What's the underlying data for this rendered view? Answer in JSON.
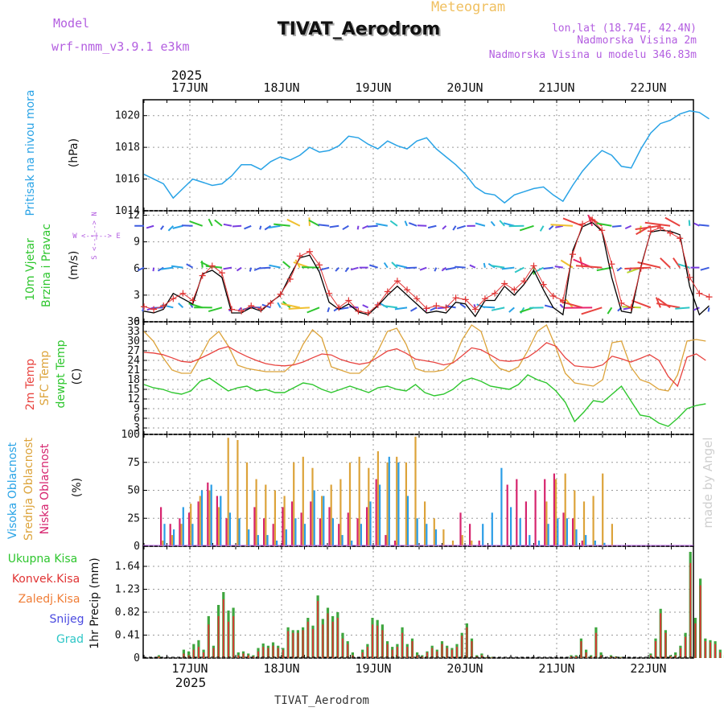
{
  "header": {
    "meteogram_label": "Meteogram",
    "station": "TIVAT_Aerodrom",
    "model_label": "Model",
    "model_name": "wrf-nmm_v3.9.1  e3km",
    "lonlat": "lon,lat (18.74E, 42.4N)",
    "alt_station": "Nadmorska Visina 2m",
    "alt_model": "Nadmorska Visina u modelu 346.83m",
    "year": "2025",
    "footer_station": "TIVAT_Aerodrom",
    "credit": "made by Angel"
  },
  "colors": {
    "pressure": "#29a3e6",
    "temp2m": "#e8433f",
    "sfc": "#dca33a",
    "dewpt": "#2ec62e",
    "high_cloud": "#2a9de6",
    "mid_cloud": "#dca33a",
    "low_cloud": "#d6246e",
    "total_precip": "#3fa63f",
    "conv_precip": "#e03333",
    "frozen_precip": "#f07d36",
    "snow": "#4a4ae0",
    "hail": "#2ec6c6",
    "wind_dir_label": "#b35ee0"
  },
  "chart_data": [
    {
      "type": "line",
      "id": "pressure",
      "title": "Pritisak na nivou mora",
      "ylabel": "(hPa)",
      "ylim": [
        1014,
        1021
      ],
      "yticks": [
        "1014",
        "1016",
        "1018",
        "1020"
      ],
      "x_start": "2025-06-16T12",
      "step_hours": 3,
      "days": [
        "17JUN",
        "18JUN",
        "19JUN",
        "20JUN",
        "21JUN",
        "22JUN"
      ],
      "series": [
        {
          "name": "Pritisak na nivou mora",
          "values": [
            1016.3,
            1016.0,
            1015.7,
            1014.8,
            1015.4,
            1016.0,
            1015.8,
            1015.6,
            1015.7,
            1016.2,
            1016.9,
            1016.9,
            1016.6,
            1017.1,
            1017.4,
            1017.2,
            1017.5,
            1018.0,
            1017.7,
            1017.8,
            1018.1,
            1018.7,
            1018.6,
            1018.2,
            1017.9,
            1018.4,
            1018.1,
            1017.9,
            1018.4,
            1018.6,
            1017.9,
            1017.4,
            1016.9,
            1016.3,
            1015.5,
            1015.1,
            1015.0,
            1014.5,
            1015.0,
            1015.2,
            1015.4,
            1015.5,
            1015.0,
            1014.6,
            1015.6,
            1016.5,
            1017.2,
            1017.8,
            1017.5,
            1016.8,
            1016.7,
            1017.9,
            1018.9,
            1019.5,
            1019.7,
            1020.1,
            1020.3,
            1020.2,
            1019.8
          ]
        }
      ]
    },
    {
      "type": "line",
      "id": "wind",
      "title": "10m Vjetar",
      "subtitle": "Brzina i Pravac",
      "ylabel": "(m/s)",
      "dir_label": "W <--|--> E",
      "dir_label2": "S <--|--> N",
      "ylim": [
        0,
        12.5
      ],
      "yticks": [
        "0",
        "3",
        "6",
        "9",
        "12"
      ],
      "series": [
        {
          "name": "brzina (plus)",
          "values": [
            1.7,
            1.4,
            1.8,
            2.6,
            3.2,
            2.4,
            5.2,
            6.3,
            5.5,
            1.4,
            1.2,
            1.8,
            1.4,
            2.1,
            3.1,
            4.8,
            7.4,
            7.9,
            6.4,
            3.2,
            1.6,
            2.4,
            1.2,
            1.0,
            1.9,
            3.4,
            4.6,
            3.6,
            2.6,
            1.5,
            1.8,
            1.6,
            2.7,
            2.5,
            1.4,
            2.6,
            3.2,
            4.3,
            3.6,
            4.6,
            6.3,
            4.2,
            2.9,
            2.4,
            7.6,
            11.0,
            11.5,
            10.3,
            6.5,
            2.1,
            1.6,
            6.0,
            10.2,
            10.6,
            10.0,
            9.4,
            5.0,
            3.2,
            2.8
          ]
        },
        {
          "name": "brzina (linija)",
          "values": [
            1.2,
            1.0,
            1.4,
            3.2,
            2.6,
            2.0,
            5.4,
            5.8,
            5.0,
            1.0,
            1.0,
            1.6,
            1.2,
            2.2,
            3.0,
            5.2,
            7.2,
            7.5,
            5.6,
            2.2,
            1.4,
            2.0,
            1.1,
            0.8,
            1.8,
            3.0,
            4.0,
            3.0,
            2.0,
            1.0,
            1.2,
            1.0,
            2.2,
            2.0,
            0.6,
            2.4,
            2.4,
            4.0,
            3.0,
            4.2,
            5.8,
            3.6,
            1.6,
            0.8,
            8.0,
            10.7,
            11.2,
            10.2,
            5.0,
            1.2,
            1.0,
            6.2,
            10.1,
            10.3,
            10.2,
            9.8,
            4.0,
            0.8,
            1.8
          ]
        }
      ]
    },
    {
      "type": "line",
      "id": "temperature",
      "title": "2m Temp",
      "subtitle": "SFC Temp",
      "subtitle2": "dewpt Temp",
      "ylabel": "(C)",
      "ylim": [
        1,
        36
      ],
      "yticks": [
        "3",
        "6",
        "9",
        "12",
        "15",
        "18",
        "21",
        "24",
        "27",
        "30",
        "33",
        "36"
      ],
      "series": [
        {
          "name": "2m Temp",
          "values": [
            26.5,
            26.3,
            25.8,
            24.8,
            23.7,
            23.4,
            24.6,
            26.0,
            27.5,
            28.3,
            26.6,
            25.2,
            24.0,
            23.0,
            22.5,
            22.3,
            22.6,
            23.5,
            24.8,
            26.0,
            25.7,
            24.3,
            23.4,
            22.8,
            23.3,
            25.0,
            26.9,
            27.6,
            26.2,
            24.4,
            23.9,
            23.4,
            22.6,
            23.2,
            25.5,
            27.9,
            27.3,
            25.7,
            24.0,
            23.7,
            24.0,
            25.0,
            27.0,
            29.5,
            28.4,
            24.8,
            22.3,
            22.0,
            21.8,
            22.6,
            25.3,
            24.5,
            23.5,
            24.6,
            25.8,
            24.0,
            19.0,
            16.0,
            25.0,
            26.0,
            24.0
          ]
        },
        {
          "name": "SFC Temp",
          "values": [
            33.0,
            30.0,
            25.0,
            21.0,
            20.0,
            20.0,
            25.0,
            30.5,
            33.0,
            28.5,
            22.5,
            21.5,
            21.0,
            20.5,
            20.5,
            20.5,
            23.0,
            29.0,
            33.5,
            31.0,
            22.0,
            21.0,
            20.0,
            20.0,
            22.5,
            27.0,
            33.0,
            34.0,
            29.0,
            21.5,
            20.5,
            20.5,
            21.0,
            23.5,
            30.5,
            35.0,
            33.0,
            24.5,
            21.5,
            20.5,
            22.0,
            27.0,
            33.0,
            35.0,
            28.0,
            20.0,
            17.0,
            16.5,
            16.0,
            18.0,
            29.5,
            30.0,
            22.0,
            18.0,
            17.0,
            15.0,
            14.5,
            19.5,
            30.0,
            30.5,
            30.0
          ]
        },
        {
          "name": "dewpt Temp",
          "values": [
            16.5,
            15.5,
            15.0,
            14.0,
            13.5,
            14.5,
            17.5,
            18.5,
            16.5,
            14.5,
            15.5,
            16.0,
            14.5,
            15.0,
            14.0,
            14.0,
            15.5,
            17.0,
            16.5,
            15.0,
            14.0,
            15.0,
            16.0,
            15.0,
            14.0,
            15.5,
            16.0,
            15.0,
            14.5,
            16.5,
            14.0,
            13.0,
            13.5,
            15.0,
            17.5,
            18.5,
            17.5,
            16.0,
            15.5,
            15.0,
            16.5,
            19.5,
            18.0,
            17.0,
            14.5,
            11.0,
            5.0,
            8.0,
            11.5,
            11.0,
            13.5,
            16.0,
            11.5,
            7.0,
            6.5,
            4.5,
            3.5,
            6.0,
            9.0,
            10.0,
            10.5
          ]
        }
      ]
    },
    {
      "type": "bar",
      "id": "clouds",
      "title": "Visoka Oblacnost",
      "subtitle": "Srednja Oblacnost",
      "subtitle2": "Niska Oblacnost",
      "ylabel": "(%)",
      "ylim": [
        0,
        100
      ],
      "yticks": [
        "0",
        "25",
        "50",
        "75",
        "100"
      ],
      "series": [
        {
          "name": "Niska Oblacnost",
          "values": [
            0,
            0,
            35,
            20,
            25,
            30,
            40,
            57,
            45,
            25,
            0,
            0,
            35,
            25,
            20,
            35,
            40,
            30,
            40,
            25,
            35,
            20,
            30,
            25,
            35,
            60,
            10,
            5,
            0,
            0,
            0,
            0,
            0,
            0,
            30,
            20,
            5,
            0,
            0,
            55,
            60,
            40,
            50,
            60,
            65,
            30,
            25,
            5,
            0,
            0,
            0,
            0,
            0,
            0,
            0,
            0,
            0,
            0,
            0,
            0,
            0
          ]
        },
        {
          "name": "Srednja Oblacnost",
          "values": [
            0,
            0,
            5,
            10,
            20,
            38,
            45,
            50,
            35,
            97,
            95,
            75,
            60,
            55,
            50,
            45,
            75,
            80,
            70,
            45,
            55,
            60,
            75,
            80,
            70,
            85,
            75,
            80,
            75,
            98,
            40,
            25,
            15,
            5,
            10,
            5,
            0,
            0,
            0,
            0,
            0,
            0,
            0,
            40,
            60,
            65,
            50,
            40,
            45,
            65,
            20,
            0,
            0,
            0,
            0,
            0,
            0,
            0,
            0,
            0,
            0
          ]
        },
        {
          "name": "Visoka Oblacnost",
          "values": [
            0,
            0,
            20,
            15,
            35,
            20,
            50,
            55,
            45,
            30,
            25,
            15,
            10,
            10,
            5,
            15,
            25,
            20,
            50,
            45,
            25,
            10,
            5,
            20,
            40,
            55,
            80,
            75,
            45,
            25,
            20,
            15,
            0,
            0,
            0,
            0,
            20,
            30,
            70,
            35,
            25,
            10,
            5,
            20,
            25,
            25,
            15,
            10,
            5,
            3,
            0,
            0,
            0,
            0,
            0,
            0,
            0,
            0,
            0,
            0,
            0
          ]
        }
      ]
    },
    {
      "type": "bar",
      "id": "precip",
      "title": "Ukupna Kisa",
      "subtitle": "Konvek.Kisa",
      "subtitle2": "Zaledj.Kisa",
      "subtitle3": "Snijeg",
      "subtitle4": "Grad",
      "ylabel": "1hr Precip (mm)",
      "ylim": [
        0,
        2.0
      ],
      "yticks": [
        "0",
        "0.41",
        "0.82",
        "1.23",
        "1.64"
      ],
      "series": [
        {
          "name": "Ukupna Kisa",
          "values": [
            0,
            0,
            0,
            0.05,
            0,
            0,
            0,
            0,
            0.15,
            0.12,
            0.25,
            0.32,
            0.15,
            0.75,
            0.22,
            0.95,
            1.18,
            0.85,
            0.9,
            0.1,
            0.12,
            0.08,
            0.05,
            0.18,
            0.26,
            0.22,
            0.28,
            0.22,
            0.18,
            0.55,
            0.5,
            0.5,
            0.55,
            0.72,
            0.58,
            1.12,
            0.7,
            0.9,
            0.75,
            0.82,
            0.45,
            0.3,
            0.1,
            0.0,
            0.15,
            0.25,
            0.72,
            0.68,
            0.6,
            0.3,
            0.2,
            0.25,
            0.55,
            0.25,
            0.35,
            0.1,
            0.05,
            0.12,
            0.22,
            0.15,
            0.3,
            0.22,
            0.18,
            0.25,
            0.45,
            0.62,
            0.35,
            0.05,
            0.08,
            0.02,
            0.02,
            0.0,
            0,
            0,
            0,
            0,
            0,
            0,
            0,
            0,
            0,
            0,
            0,
            0,
            0,
            0,
            0.05,
            0.05,
            0.35,
            0.15,
            0.05,
            0.55,
            0.1,
            0.0,
            0.05,
            0.03,
            0.02,
            0.0,
            0,
            0,
            0,
            0,
            0.08,
            0.35,
            0.88,
            0.5,
            0.05,
            0.1,
            0.22,
            0.45,
            1.9,
            0.72,
            1.42,
            0.35,
            0.32,
            0.3,
            0.15,
            0.05
          ]
        },
        {
          "name": "Konvek.Kisa",
          "values": [
            0,
            0,
            0,
            0.03,
            0,
            0,
            0,
            0,
            0.08,
            0.05,
            0.15,
            0.2,
            0.1,
            0.6,
            0.18,
            0.75,
            1.05,
            0.65,
            0.75,
            0.05,
            0.08,
            0.05,
            0.03,
            0.12,
            0.2,
            0.18,
            0.22,
            0.18,
            0.15,
            0.48,
            0.45,
            0.45,
            0.5,
            0.65,
            0.52,
            1.02,
            0.6,
            0.8,
            0.65,
            0.72,
            0.35,
            0.25,
            0.05,
            0.0,
            0.1,
            0.2,
            0.6,
            0.58,
            0.5,
            0.25,
            0.15,
            0.2,
            0.45,
            0.2,
            0.3,
            0.05,
            0.03,
            0.1,
            0.18,
            0.12,
            0.25,
            0.18,
            0.15,
            0.2,
            0.4,
            0.55,
            0.3,
            0.03,
            0.05,
            0.01,
            0.01,
            0.0,
            0,
            0,
            0,
            0,
            0,
            0,
            0,
            0,
            0,
            0,
            0,
            0,
            0,
            0,
            0.03,
            0.03,
            0.3,
            0.1,
            0.03,
            0.45,
            0.05,
            0.0,
            0.03,
            0.02,
            0.01,
            0.0,
            0,
            0,
            0,
            0,
            0.05,
            0.3,
            0.8,
            0.45,
            0.03,
            0.05,
            0.18,
            0.38,
            1.7,
            0.62,
            1.3,
            0.3,
            0.28,
            0.25,
            0.1,
            0.03
          ]
        }
      ]
    }
  ]
}
